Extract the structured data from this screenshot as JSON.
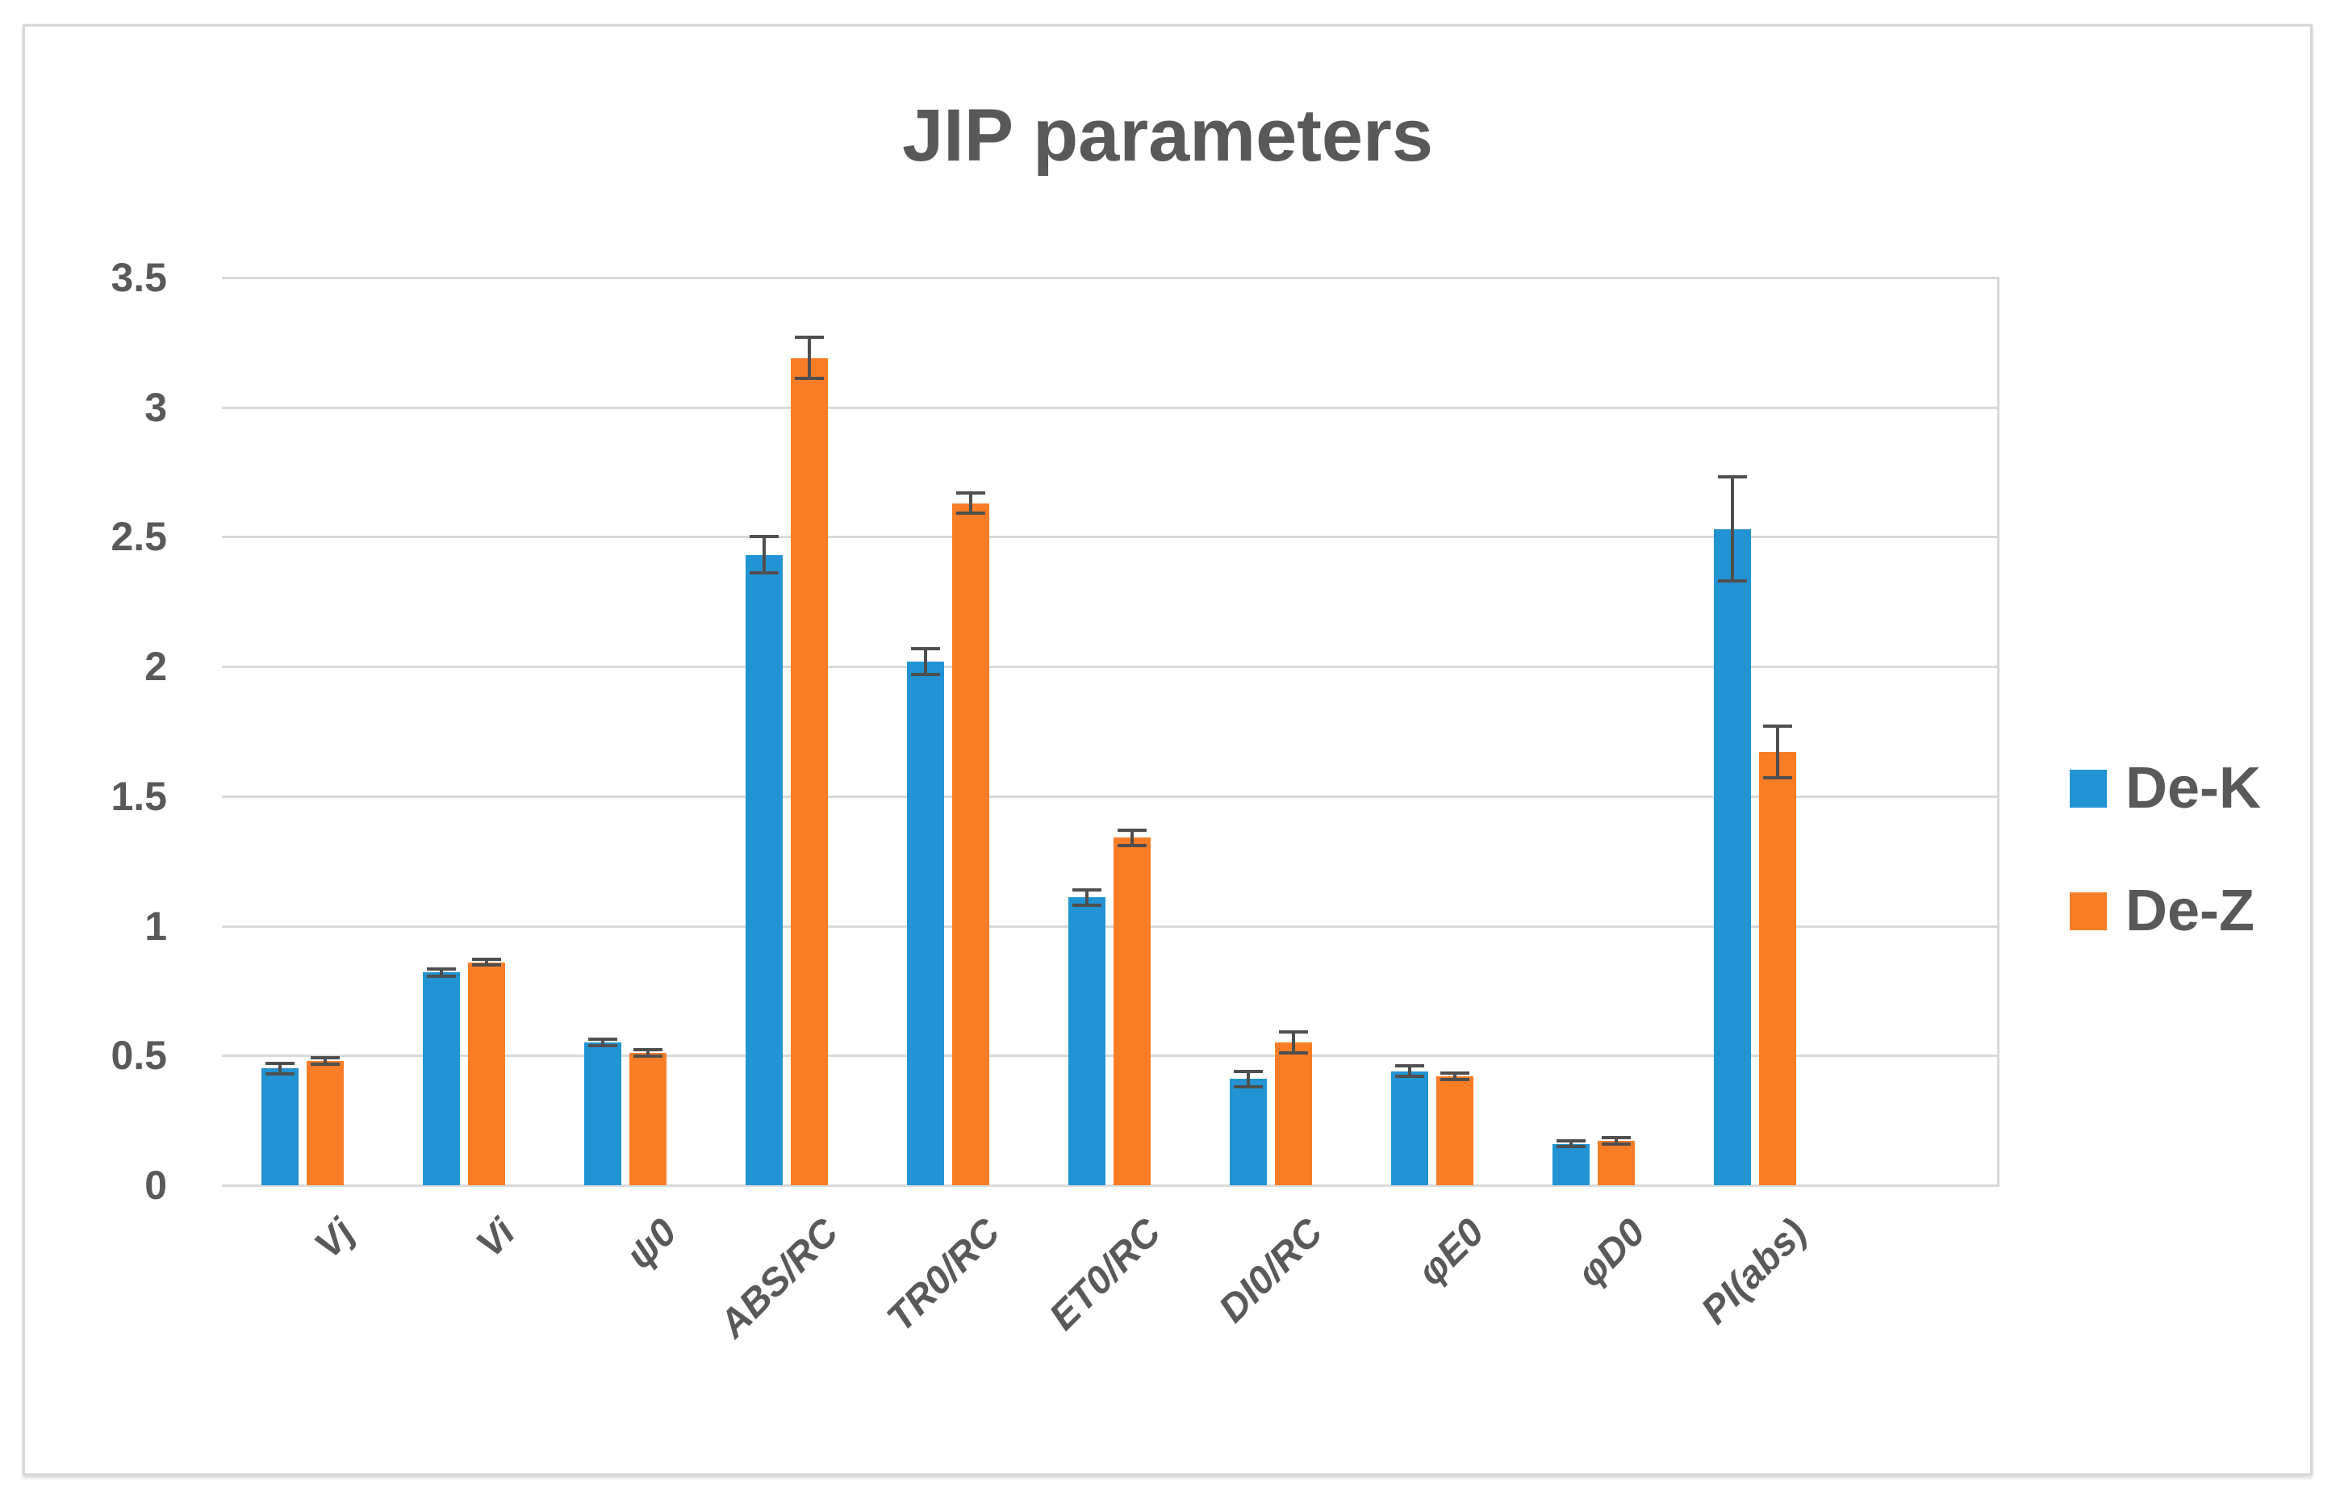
{
  "chart_data": {
    "type": "bar",
    "title": "JIP parameters",
    "categories": [
      "Vj",
      "Vi",
      "ψ0",
      "ABS/RC",
      "TR0/RC",
      "ET0/RC",
      "DI0/RC",
      "φE0",
      "φD0",
      "PI(abs)"
    ],
    "series": [
      {
        "name": "De-K",
        "color": "#2294d3",
        "values": [
          0.45,
          0.82,
          0.55,
          2.43,
          2.02,
          1.11,
          0.41,
          0.44,
          0.16,
          2.53
        ],
        "errors": [
          0.02,
          0.015,
          0.012,
          0.07,
          0.05,
          0.03,
          0.03,
          0.02,
          0.012,
          0.2
        ]
      },
      {
        "name": "De-Z",
        "color": "#f97d26",
        "values": [
          0.48,
          0.86,
          0.51,
          3.19,
          2.63,
          1.34,
          0.55,
          0.42,
          0.17,
          1.67
        ],
        "errors": [
          0.012,
          0.012,
          0.012,
          0.08,
          0.04,
          0.03,
          0.04,
          0.012,
          0.012,
          0.1
        ]
      }
    ],
    "error_bars": true,
    "ylim": [
      0,
      3.5
    ],
    "ytick_step": 0.5,
    "yticks": [
      "0",
      "0.5",
      "1",
      "1.5",
      "2",
      "2.5",
      "3",
      "3.5"
    ],
    "grid": true,
    "legend_position": "right",
    "x_labels_rotation_deg": -45
  },
  "styles": {
    "gridline_color": "#d9d9d9",
    "text_color": "#595959",
    "error_bar_color": "#4f4f4f",
    "frame_border_color": "#d7d7d7",
    "background": "#ffffff"
  }
}
